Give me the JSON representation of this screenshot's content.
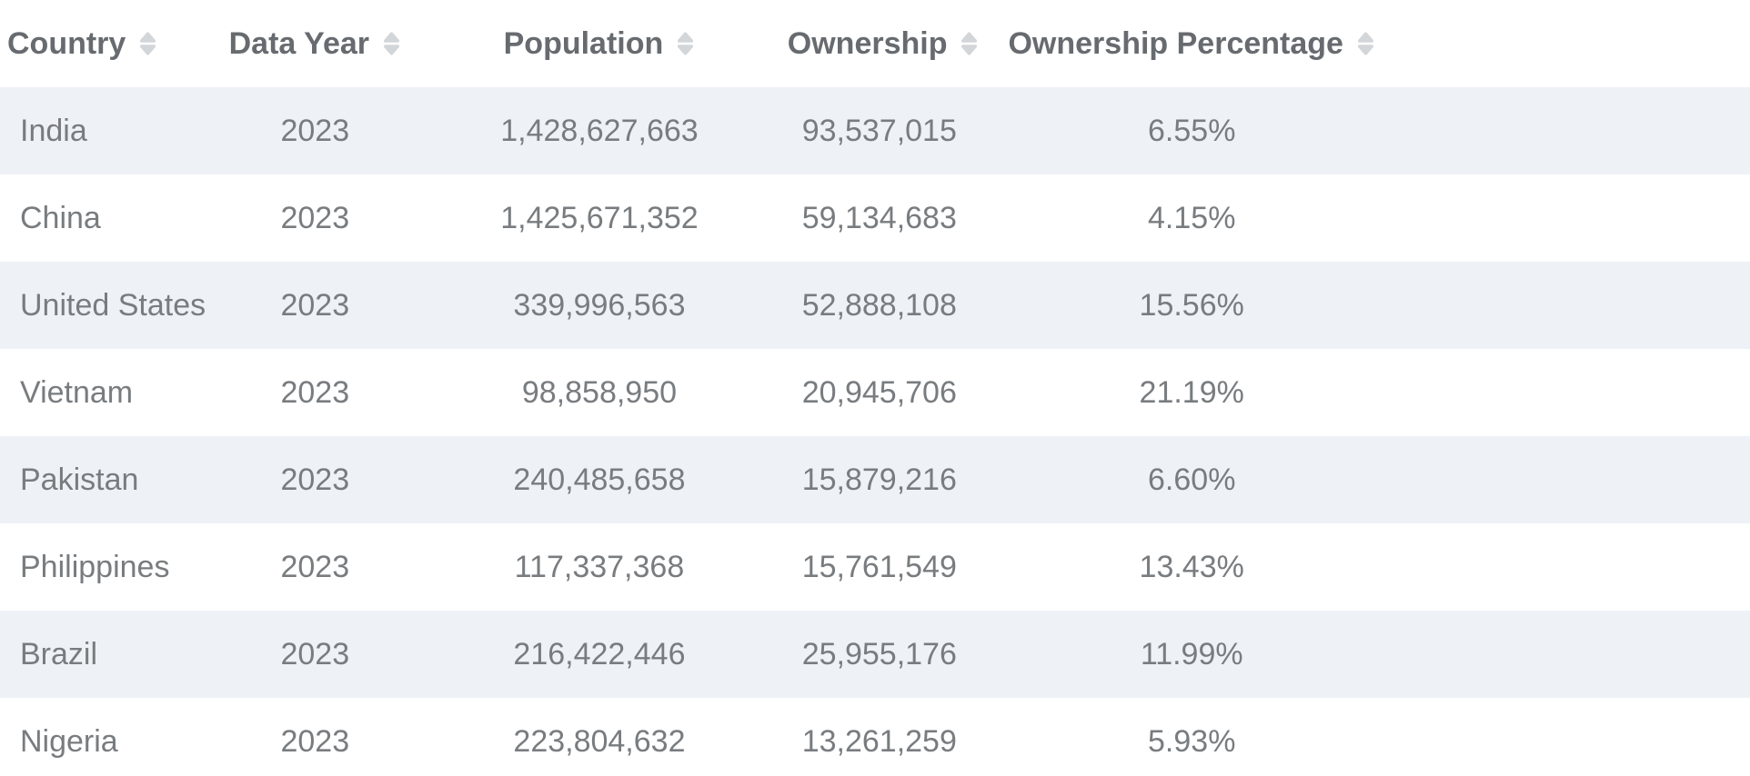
{
  "table": {
    "columns": [
      {
        "key": "country",
        "label": "Country",
        "align": "left",
        "sortable": true
      },
      {
        "key": "data-year",
        "label": "Data Year",
        "align": "center",
        "sortable": true
      },
      {
        "key": "population",
        "label": "Population",
        "align": "center",
        "sortable": true
      },
      {
        "key": "ownership",
        "label": "Ownership",
        "align": "center",
        "sortable": true
      },
      {
        "key": "ownership-percentage",
        "label": "Ownership Percentage",
        "align": "center",
        "sortable": true
      }
    ],
    "rows": [
      [
        "India",
        "2023",
        "1,428,627,663",
        "93,537,015",
        "6.55%"
      ],
      [
        "China",
        "2023",
        "1,425,671,352",
        "59,134,683",
        "4.15%"
      ],
      [
        "United States",
        "2023",
        "339,996,563",
        "52,888,108",
        "15.56%"
      ],
      [
        "Vietnam",
        "2023",
        "98,858,950",
        "20,945,706",
        "21.19%"
      ],
      [
        "Pakistan",
        "2023",
        "240,485,658",
        "15,879,216",
        "6.60%"
      ],
      [
        "Philippines",
        "2023",
        "117,337,368",
        "15,761,549",
        "13.43%"
      ],
      [
        "Brazil",
        "2023",
        "216,422,446",
        "25,955,176",
        "11.99%"
      ],
      [
        "Nigeria",
        "2023",
        "223,804,632",
        "13,261,259",
        "5.93%"
      ]
    ]
  },
  "icons": {
    "sort": "sort-up-down-arrows"
  },
  "colors": {
    "header_text": "#676b6f",
    "cell_text": "#797c7f",
    "stripe_row_bg": "#eef2f7",
    "plain_row_bg": "#ffffff",
    "sort_icon": "#d3d6d9"
  }
}
